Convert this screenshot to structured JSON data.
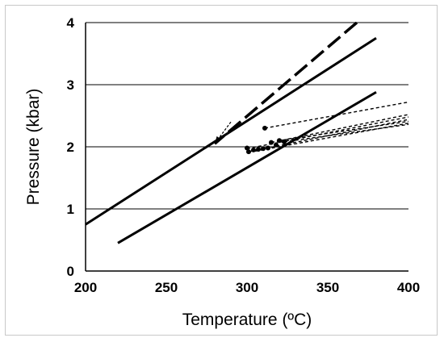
{
  "chart_data": {
    "type": "line",
    "xlabel": "Temperature (ºC)",
    "ylabel": "Pressure (kbar)",
    "xlim": [
      200,
      400
    ],
    "ylim": [
      0,
      4
    ],
    "xticks": [
      "200",
      "250",
      "300",
      "350",
      "400"
    ],
    "yticks": [
      "0",
      "1",
      "2",
      "3",
      "4"
    ],
    "grid": "horizontal",
    "legend": "none",
    "colors": {
      "lines": "#000000",
      "grid": "#000000"
    },
    "series": [
      {
        "style": "solid",
        "x": [
          200,
          380
        ],
        "y": [
          0.75,
          3.75
        ]
      },
      {
        "style": "solid",
        "x": [
          220,
          380
        ],
        "y": [
          0.45,
          2.88
        ]
      },
      {
        "style": "long-dash",
        "x": [
          368,
          280
        ],
        "y": [
          4.0,
          2.05
        ]
      },
      {
        "style": "short-dash",
        "x": [
          311,
          400
        ],
        "y": [
          2.3,
          2.72
        ]
      },
      {
        "style": "short-dash",
        "x": [
          300,
          400
        ],
        "y": [
          1.97,
          2.48
        ]
      },
      {
        "style": "short-dash",
        "x": [
          301,
          400
        ],
        "y": [
          1.92,
          2.44
        ]
      },
      {
        "style": "short-dash",
        "x": [
          305,
          400
        ],
        "y": [
          1.93,
          2.38
        ]
      },
      {
        "style": "short-dash",
        "x": [
          315,
          400
        ],
        "y": [
          2.07,
          2.52
        ]
      },
      {
        "style": "short-dash",
        "x": [
          320,
          400
        ],
        "y": [
          2.1,
          2.41
        ]
      },
      {
        "style": "short-dash",
        "x": [
          323,
          400
        ],
        "y": [
          2.08,
          2.36
        ]
      }
    ],
    "points": [
      {
        "x": 311,
        "y": 2.3
      },
      {
        "x": 300,
        "y": 1.98
      },
      {
        "x": 301,
        "y": 1.92
      },
      {
        "x": 304,
        "y": 1.95
      },
      {
        "x": 307,
        "y": 1.96
      },
      {
        "x": 310,
        "y": 1.97
      },
      {
        "x": 313,
        "y": 1.98
      },
      {
        "x": 315,
        "y": 2.07
      },
      {
        "x": 318,
        "y": 2.03
      },
      {
        "x": 320,
        "y": 2.1
      },
      {
        "x": 323,
        "y": 2.08
      }
    ],
    "arrow": {
      "x": [
        290,
        280
      ],
      "y": [
        2.4,
        2.05
      ]
    }
  }
}
